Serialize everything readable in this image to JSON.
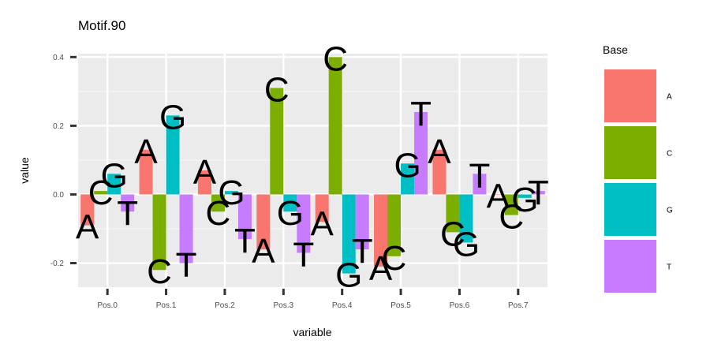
{
  "chart_data": {
    "type": "bar",
    "title": "Motif.90",
    "xlabel": "variable",
    "ylabel": "value",
    "ylim": [
      -0.27,
      0.41
    ],
    "yticks": [
      -0.2,
      0.0,
      0.2,
      0.4
    ],
    "ytick_labels": [
      "-0.2",
      "0.0",
      "0.2",
      "0.4"
    ],
    "grid": true,
    "legend": {
      "title": "Base",
      "placement": "right"
    },
    "categories": [
      "Pos.0",
      "Pos.1",
      "Pos.2",
      "Pos.3",
      "Pos.4",
      "Pos.5",
      "Pos.6",
      "Pos.7"
    ],
    "series": [
      {
        "name": "A",
        "color": "#F8766D",
        "values": [
          -0.09,
          0.13,
          0.07,
          -0.16,
          -0.08,
          -0.21,
          0.13,
          0.0
        ]
      },
      {
        "name": "C",
        "color": "#7CAE00",
        "values": [
          0.01,
          -0.22,
          -0.05,
          0.31,
          0.4,
          -0.18,
          -0.11,
          -0.06
        ]
      },
      {
        "name": "G",
        "color": "#00BFC4",
        "values": [
          0.06,
          0.23,
          0.01,
          -0.05,
          -0.23,
          0.09,
          -0.14,
          -0.01
        ]
      },
      {
        "name": "T",
        "color": "#C77CFF",
        "values": [
          -0.05,
          -0.2,
          -0.13,
          -0.17,
          -0.16,
          0.24,
          0.06,
          0.01
        ]
      }
    ]
  }
}
